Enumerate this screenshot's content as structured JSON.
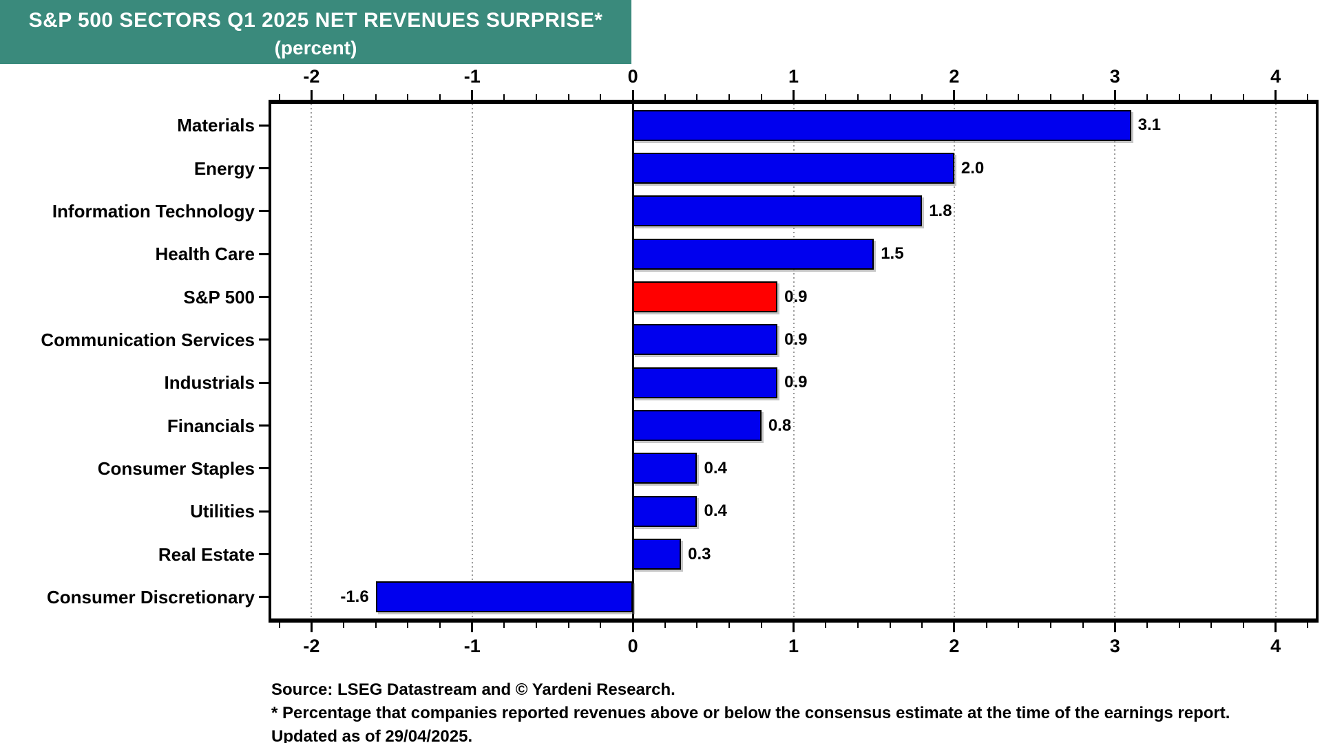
{
  "title": {
    "line1": "S&P 500 SECTORS Q1 2025 NET REVENUES SURPRISE*",
    "line2": "(percent)"
  },
  "chart_data": {
    "type": "bar",
    "orientation": "horizontal",
    "title": "S&P 500 SECTORS Q1 2025 NET REVENUES SURPRISE*",
    "subtitle": "(percent)",
    "xlabel": "percent",
    "ylabel": "",
    "xlim": [
      -2.25,
      4.25
    ],
    "x_major_ticks": [
      -2,
      -1,
      0,
      1,
      2,
      3,
      4
    ],
    "x_minor_tick_step": 0.2,
    "tick_label_positions": "top and bottom",
    "grid": "vertical dotted gridlines at major ticks, solid black line at zero",
    "legend": "none",
    "categories": [
      "Materials",
      "Energy",
      "Information Technology",
      "Health Care",
      "S&P 500",
      "Communication Services",
      "Industrials",
      "Financials",
      "Consumer Staples",
      "Utilities",
      "Real Estate",
      "Consumer Discretionary"
    ],
    "values": [
      3.1,
      2.0,
      1.8,
      1.5,
      0.9,
      0.9,
      0.9,
      0.8,
      0.4,
      0.4,
      0.3,
      -1.6
    ],
    "value_label_format": "one decimal, outside bar end",
    "highlight_category": "S&P 500",
    "bar_color": "#0000ee",
    "highlight_color": "#ff0000"
  },
  "footer": {
    "source": "Source: LSEG Datastream and © Yardeni Research.",
    "footnote": "* Percentage that companies reported revenues above or below the consensus estimate at the time of the earnings report.",
    "updated": "Updated as of 29/04/2025."
  },
  "colors": {
    "header_bg": "#3a8a7c",
    "header_text": "#ffffff",
    "bar_blue": "#0000ee",
    "bar_red": "#ff0000",
    "grid": "#9a9a9a",
    "text": "#000000",
    "background": "#ffffff"
  }
}
